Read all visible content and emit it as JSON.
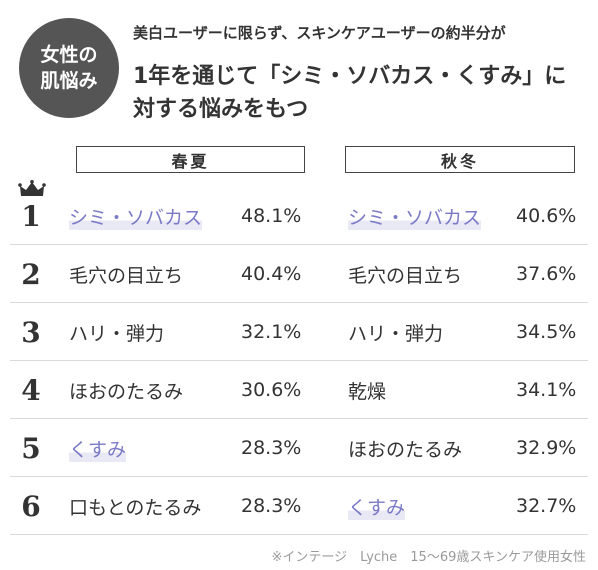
{
  "badge": {
    "line1": "女性の",
    "line2": "肌悩み"
  },
  "intro": "美白ユーザーに限らず、スキンケアユーザーの約半分が",
  "headline": {
    "line1": "1年を通じて「シミ・ソバカス・くすみ」に",
    "line2": "対する悩みをもつ"
  },
  "columns": {
    "spring": "春夏",
    "autumn": "秋冬"
  },
  "highlight_color": "#7a7ac6",
  "rows": [
    {
      "rank": "1",
      "spring": {
        "item": "シミ・ソバカス",
        "pct": "48.1%"
      },
      "autumn": {
        "item": "シミ・ソバカス",
        "pct": "40.6%"
      }
    },
    {
      "rank": "2",
      "spring": {
        "item": "毛穴の目立ち",
        "pct": "40.4%"
      },
      "autumn": {
        "item": "毛穴の目立ち",
        "pct": "37.6%"
      }
    },
    {
      "rank": "3",
      "spring": {
        "item": "ハリ・弾力",
        "pct": "32.1%"
      },
      "autumn": {
        "item": "ハリ・弾力",
        "pct": "34.5%"
      }
    },
    {
      "rank": "4",
      "spring": {
        "item": "ほおのたるみ",
        "pct": "30.6%"
      },
      "autumn": {
        "item": "乾燥",
        "pct": "34.1%"
      }
    },
    {
      "rank": "5",
      "spring": {
        "item": "くすみ",
        "pct": "28.3%"
      },
      "autumn": {
        "item": "ほおのたるみ",
        "pct": "32.9%"
      }
    },
    {
      "rank": "6",
      "spring": {
        "item": "口もとのたるみ",
        "pct": "28.3%"
      },
      "autumn": {
        "item": "くすみ",
        "pct": "32.7%"
      }
    }
  ],
  "source": "※インテージ　Lyche　15～69歳スキンケア使用女性"
}
